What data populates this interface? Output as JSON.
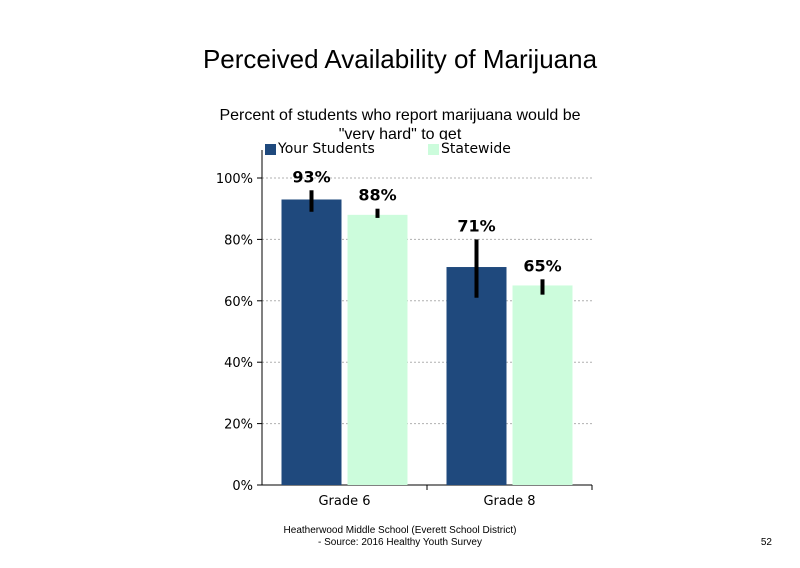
{
  "chart_data": {
    "type": "bar",
    "title": "Perceived Availability of Marijuana",
    "subtitle": "Percent of students who report marijuana would be \"very hard\" to get",
    "categories": [
      "Grade 6",
      "Grade 8"
    ],
    "series": [
      {
        "name": "Your Students",
        "values": [
          93,
          71
        ],
        "labels": [
          "93%",
          "71%"
        ],
        "error_low": [
          89,
          61
        ],
        "error_high": [
          96,
          80
        ],
        "color": "#1f497d"
      },
      {
        "name": "Statewide",
        "values": [
          88,
          65
        ],
        "labels": [
          "88%",
          "65%"
        ],
        "error_low": [
          87,
          62
        ],
        "error_high": [
          90,
          67
        ],
        "color": "#ccfcdc"
      }
    ],
    "ylim": [
      0,
      100
    ],
    "yticks": [
      "0%",
      "20%",
      "40%",
      "60%",
      "80%",
      "100%"
    ],
    "ytick_values": [
      0,
      20,
      40,
      60,
      80,
      100
    ],
    "grid": true,
    "legend_position": "top"
  },
  "footer": {
    "line1": "Heatherwood Middle School (Everett School District)",
    "line2": "- Source: 2016 Healthy Youth Survey"
  },
  "page_number": "52"
}
